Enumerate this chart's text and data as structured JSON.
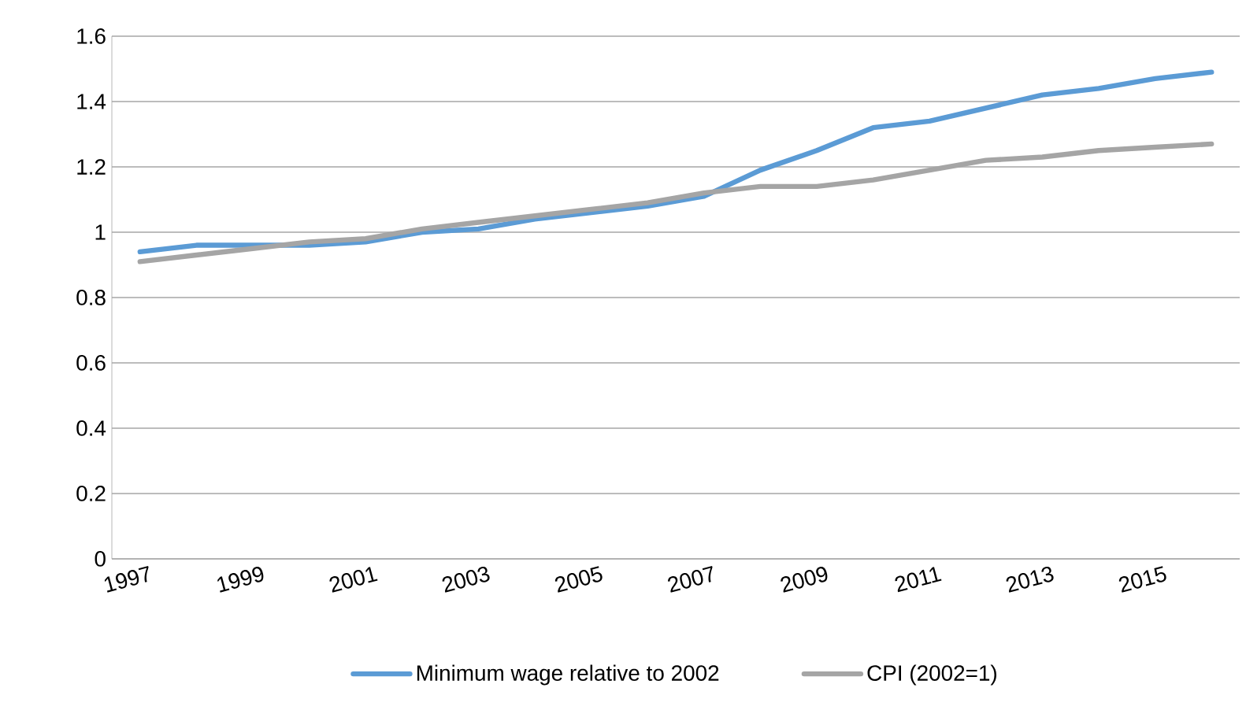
{
  "chart_data": {
    "type": "line",
    "categories": [
      "1997",
      null,
      "1999",
      null,
      "2001",
      null,
      "2003",
      null,
      "2005",
      null,
      "2007",
      null,
      "2009",
      null,
      "2011",
      null,
      "2013",
      null,
      "2015",
      null
    ],
    "series": [
      {
        "name": "Minimum wage relative to 2002",
        "color": "#5b9bd5",
        "values": [
          0.94,
          0.96,
          0.96,
          0.96,
          0.97,
          1.0,
          1.01,
          1.04,
          1.06,
          1.08,
          1.11,
          1.19,
          1.25,
          1.32,
          1.34,
          1.38,
          1.42,
          1.44,
          1.47,
          1.49
        ]
      },
      {
        "name": "CPI (2002=1)",
        "color": "#a5a5a5",
        "values": [
          0.91,
          0.93,
          0.95,
          0.97,
          0.98,
          1.01,
          1.03,
          1.05,
          1.07,
          1.09,
          1.12,
          1.14,
          1.14,
          1.16,
          1.19,
          1.22,
          1.23,
          1.25,
          1.26,
          1.27
        ]
      }
    ],
    "ylim": [
      0,
      1.6
    ],
    "yticks": [
      0,
      0.2,
      0.4,
      0.6,
      0.8,
      1,
      1.2,
      1.4,
      1.6
    ],
    "grid": "y",
    "legend": "bottom"
  }
}
